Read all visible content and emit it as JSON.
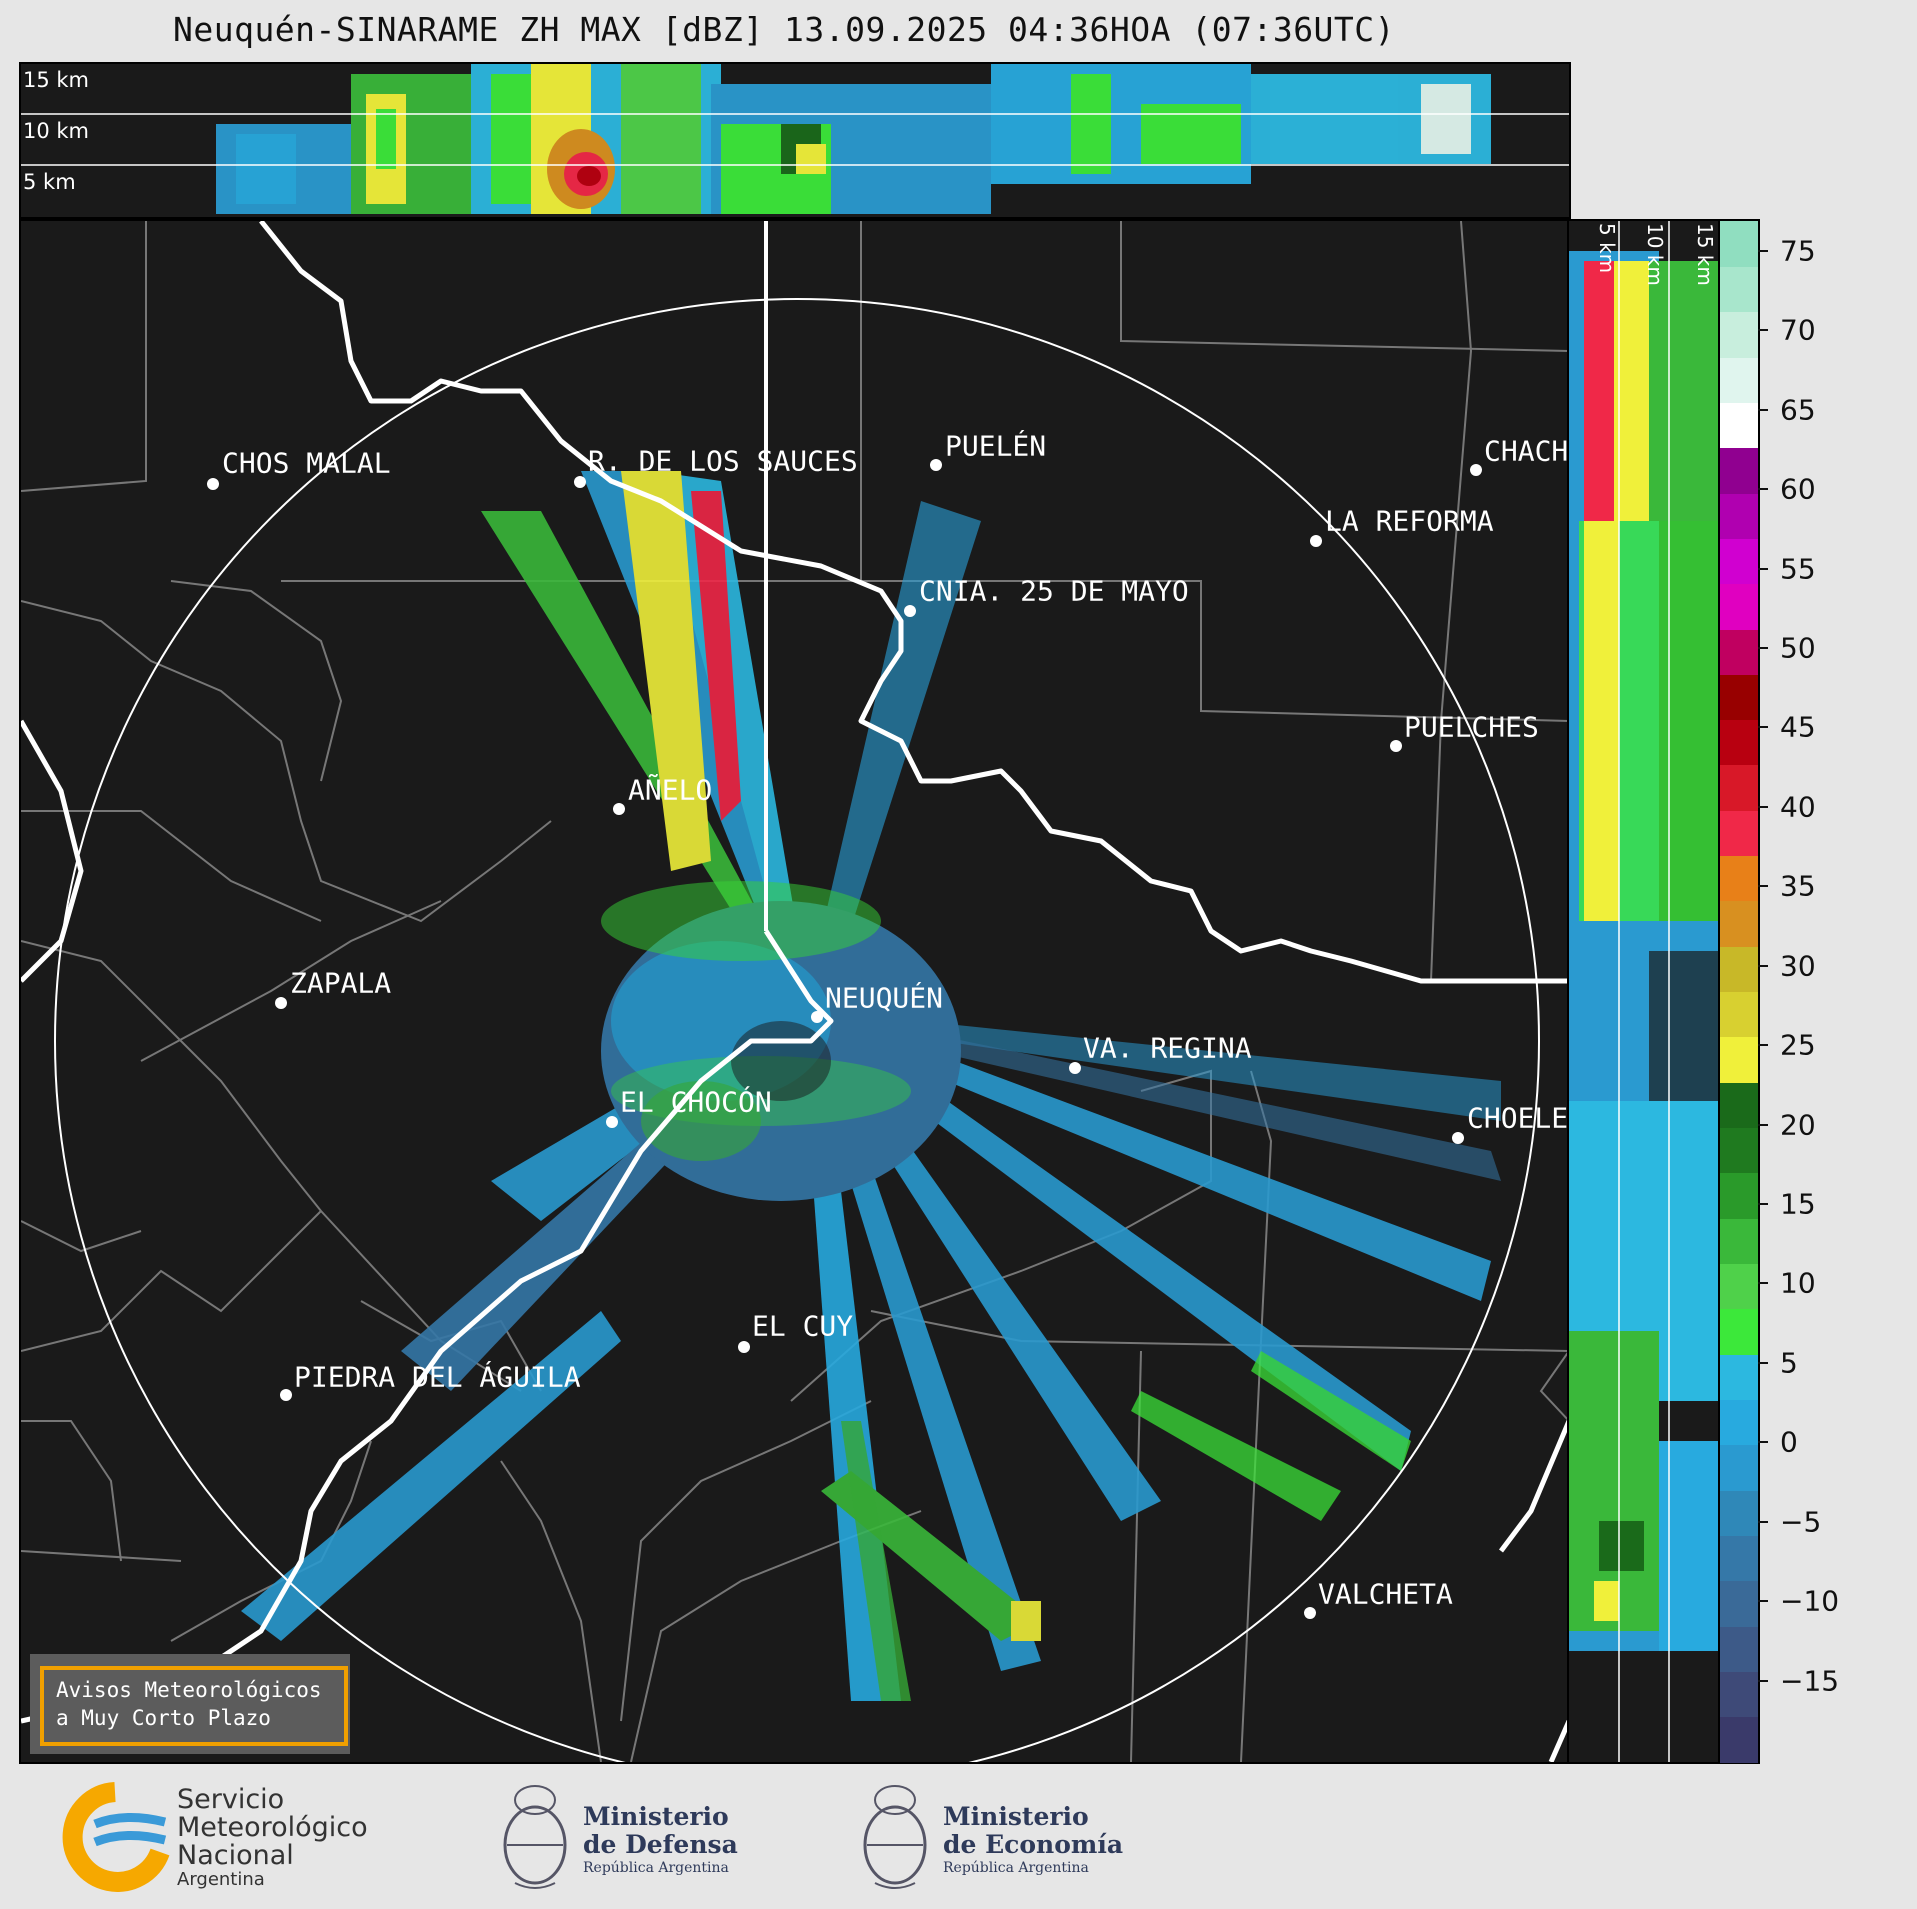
{
  "title": "Neuquén-SINARAME ZH MAX [dBZ] 13.09.2025 04:36HOA (07:36UTC)",
  "top_panel": {
    "altitudes": [
      "15 km",
      "10 km",
      "5 km"
    ]
  },
  "side_panel": {
    "altitudes": [
      "5 km",
      "10 km",
      "15 km"
    ]
  },
  "colorbar": {
    "ticks": [
      "75",
      "70",
      "65",
      "60",
      "55",
      "50",
      "45",
      "40",
      "35",
      "30",
      "25",
      "20",
      "15",
      "10",
      "5",
      "0",
      "−5",
      "−10",
      "−15"
    ],
    "range": [
      -20,
      77
    ],
    "colors": [
      "#3a3a6a",
      "#3e4a78",
      "#3d5a88",
      "#3a6a98",
      "#3578a8",
      "#2f88b8",
      "#2a9ad0",
      "#28aadf",
      "#2cb8e0",
      "#3ce83a",
      "#4fd14a",
      "#3ab83a",
      "#2a9a2a",
      "#1f7a1f",
      "#1a6a1a",
      "#f0f03a",
      "#d8d030",
      "#c8b828",
      "#d89020",
      "#e88018",
      "#f02848",
      "#d81828",
      "#b80010",
      "#980000",
      "#c00060",
      "#e000c0",
      "#d000d0",
      "#b000b0",
      "#900090",
      "#ffffff",
      "#e0f5ee",
      "#c8eedd",
      "#a8e6cc",
      "#90dec0"
    ]
  },
  "cities": [
    {
      "name": "CHOS MALAL"
    },
    {
      "name": "R. DE LOS SAUCES"
    },
    {
      "name": "PUELÉN"
    },
    {
      "name": "CHACH"
    },
    {
      "name": "LA REFORMA"
    },
    {
      "name": "CNIA. 25 DE MAYO"
    },
    {
      "name": "PUELCHES"
    },
    {
      "name": "AÑELO"
    },
    {
      "name": "ZAPALA"
    },
    {
      "name": "NEUQUÉN"
    },
    {
      "name": "VA. REGINA"
    },
    {
      "name": "EL CHOCÓN"
    },
    {
      "name": "CHOELE"
    },
    {
      "name": "EL CUY"
    },
    {
      "name": "PIEDRA DEL ÁGUILA"
    },
    {
      "name": "VALCHETA"
    }
  ],
  "notice": {
    "line1": "Avisos Meteorológicos",
    "line2": "a Muy Corto Plazo"
  },
  "logos": {
    "smn": {
      "line1": "Servicio",
      "line2": "Meteorológico",
      "line3": "Nacional",
      "line4": "Argentina"
    },
    "defensa": {
      "line1": "Ministerio",
      "line2": "de Defensa",
      "line3": "República Argentina"
    },
    "economia": {
      "line1": "Ministerio",
      "line2": "de Economía",
      "line3": "República Argentina"
    }
  }
}
